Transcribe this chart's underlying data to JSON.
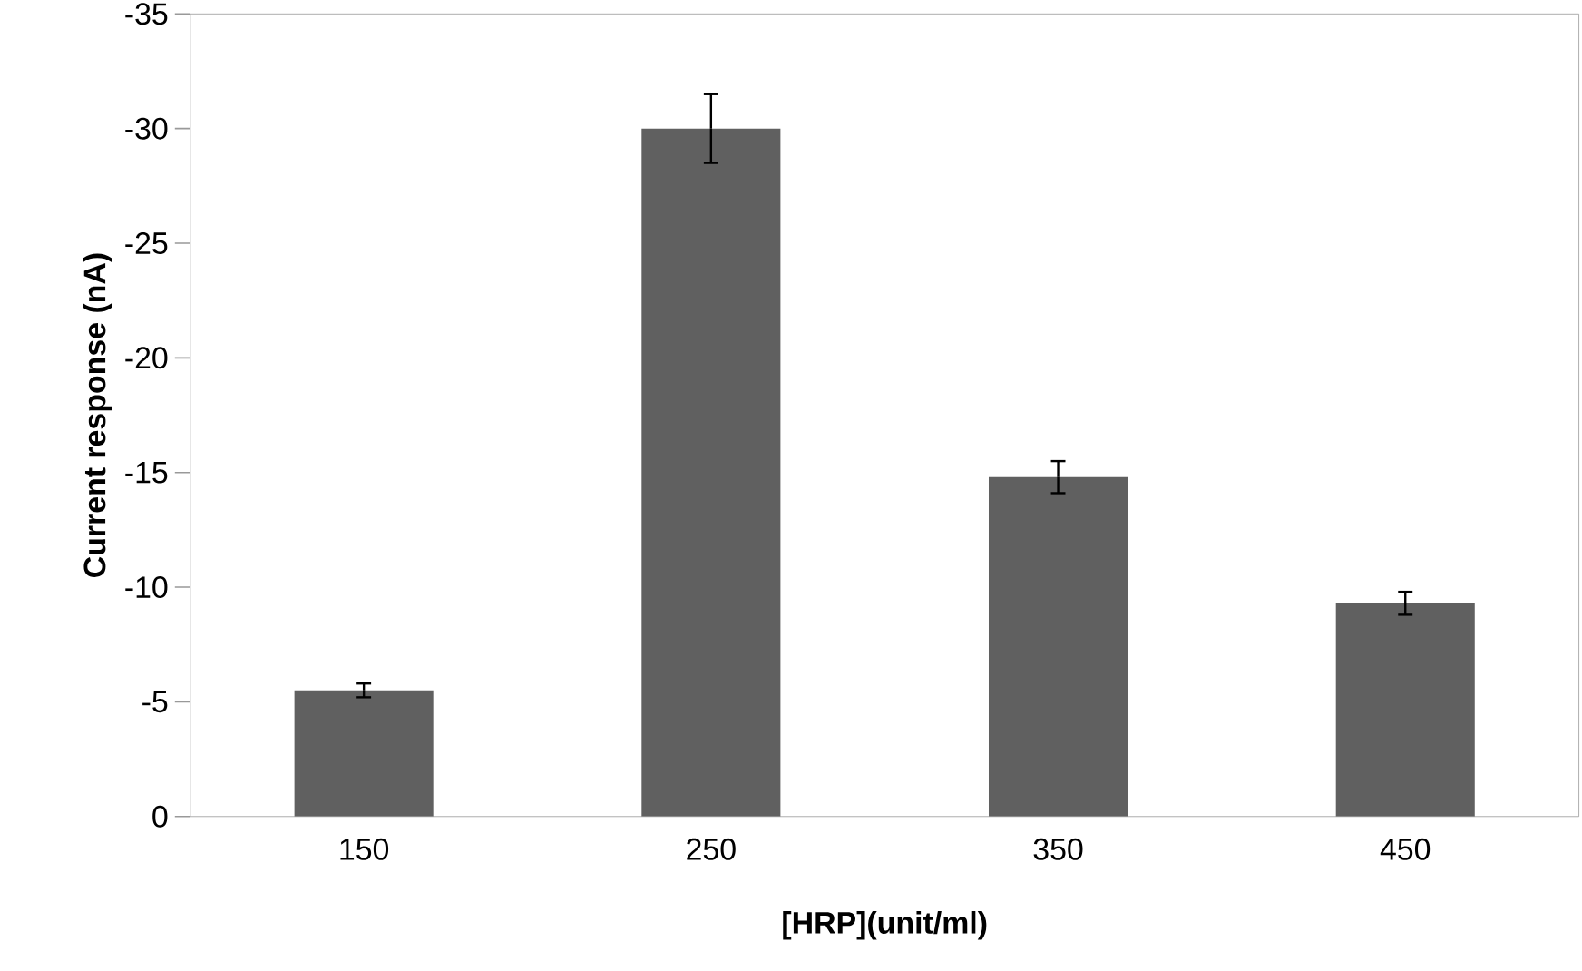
{
  "chart_data": {
    "type": "bar",
    "xlabel": "[HRP](unit/ml)",
    "ylabel": "Current response (nA)",
    "categories": [
      "150",
      "250",
      "350",
      "450"
    ],
    "values": [
      -5.5,
      -30,
      -14.8,
      -9.3
    ],
    "errors": [
      0.3,
      1.5,
      0.7,
      0.5
    ],
    "color": "#606060",
    "ylim": [
      0,
      -35
    ],
    "yticks": [
      0,
      -5,
      -10,
      -15,
      -20,
      -25,
      -30,
      -35
    ],
    "grid": false,
    "legend": false
  }
}
